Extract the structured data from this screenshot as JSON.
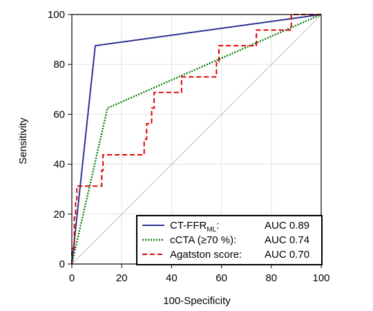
{
  "chart_data": {
    "type": "line",
    "xlabel": "100-Specificity",
    "ylabel": "Sensitivity",
    "xlim": [
      0,
      100
    ],
    "ylim": [
      0,
      100
    ],
    "x_ticks": [
      0,
      20,
      40,
      60,
      80,
      100
    ],
    "y_ticks": [
      0,
      20,
      40,
      60,
      80,
      100
    ],
    "grid": true,
    "legend_position": "bottom-right",
    "reference_line": [
      [
        0,
        0
      ],
      [
        100,
        100
      ]
    ],
    "series": [
      {
        "name_main": "CT-FFR",
        "name_sub": "ML",
        "name_suffix": ":",
        "auc_label": "AUC 0.89",
        "color": "#2e3192",
        "style": "solid",
        "points": [
          [
            0,
            0
          ],
          [
            9.4,
            87.5
          ],
          [
            100,
            100
          ]
        ]
      },
      {
        "name": "cCTA (≥70 %):",
        "auc_label": "AUC 0.74",
        "color": "#007a00",
        "style": "dotted",
        "points": [
          [
            0,
            0
          ],
          [
            14.3,
            62.5
          ],
          [
            100,
            100
          ]
        ]
      },
      {
        "name": "Agatston score:",
        "auc_label": "AUC 0.70",
        "color": "#e00000",
        "style": "dashed",
        "points": [
          [
            0,
            0
          ],
          [
            0,
            6.25
          ],
          [
            1,
            6.25
          ],
          [
            1,
            18.75
          ],
          [
            1.5,
            18.75
          ],
          [
            1.5,
            25
          ],
          [
            2,
            25
          ],
          [
            2,
            31.25
          ],
          [
            12,
            31.25
          ],
          [
            12,
            37.5
          ],
          [
            12.5,
            37.5
          ],
          [
            12.5,
            43.75
          ],
          [
            29,
            43.75
          ],
          [
            29,
            50
          ],
          [
            30,
            50
          ],
          [
            30,
            56.25
          ],
          [
            32,
            56.25
          ],
          [
            32,
            62.5
          ],
          [
            33,
            62.5
          ],
          [
            33,
            68.75
          ],
          [
            44,
            68.75
          ],
          [
            44,
            75
          ],
          [
            58,
            75
          ],
          [
            58,
            81.25
          ],
          [
            59,
            81.25
          ],
          [
            59,
            87.5
          ],
          [
            74,
            87.5
          ],
          [
            74,
            93.75
          ],
          [
            88,
            93.75
          ],
          [
            88,
            100
          ],
          [
            100,
            100
          ]
        ]
      }
    ]
  }
}
